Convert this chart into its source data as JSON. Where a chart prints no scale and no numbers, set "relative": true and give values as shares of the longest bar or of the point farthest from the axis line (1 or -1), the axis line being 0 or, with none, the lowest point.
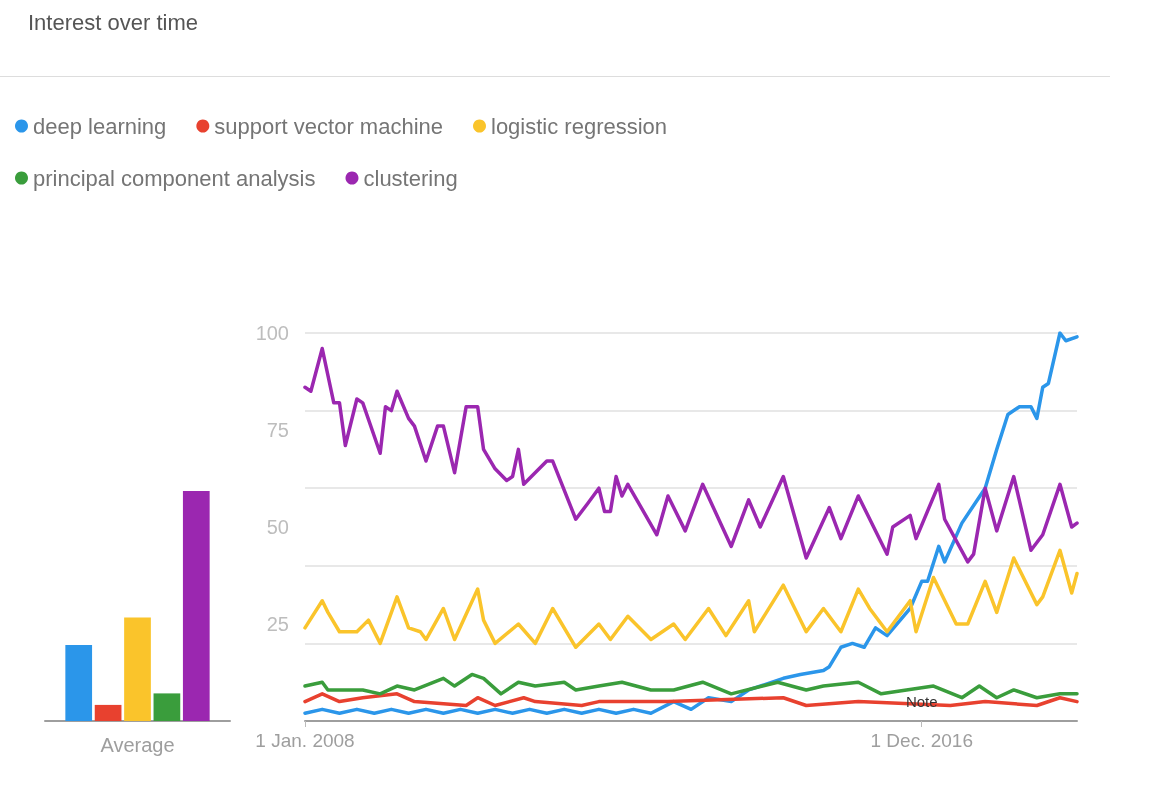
{
  "chart_data": [
    {
      "type": "bar",
      "categories": [
        "Average"
      ],
      "relative": true,
      "series": [
        {
          "color": "#2b96ea",
          "values": [
            0.33
          ]
        },
        {
          "color": "#e8412f",
          "values": [
            0.07
          ]
        },
        {
          "color": "#fac42b",
          "values": [
            0.45
          ]
        },
        {
          "color": "#3a9d3c",
          "values": [
            0.12
          ]
        },
        {
          "color": "#9b27b0",
          "values": [
            1
          ]
        }
      ]
    },
    {
      "type": "line",
      "title": "Interest over time",
      "legend": "top",
      "grid": "y",
      "marker": "none",
      "line_style": "solid",
      "xlim": [
        "2008-01",
        "2019-03"
      ],
      "xticks": [
        {
          "value": "2008-01",
          "label": "1 Jan. 2008"
        },
        {
          "value": "2016-12",
          "label": "1 Dec. 2016"
        }
      ],
      "ylim": [
        0,
        100
      ],
      "yticks": [
        25,
        50,
        75,
        100
      ],
      "annotations": [
        {
          "text": "Note",
          "x": "2016-12",
          "y": 5
        }
      ],
      "series": [
        {
          "name": "deep learning",
          "color": "#2b96ea",
          "x": [
            "2008-01",
            "2008-04",
            "2008-07",
            "2008-10",
            "2009-01",
            "2009-04",
            "2009-07",
            "2009-10",
            "2010-01",
            "2010-04",
            "2010-07",
            "2010-10",
            "2011-01",
            "2011-04",
            "2011-07",
            "2011-10",
            "2012-01",
            "2012-04",
            "2012-07",
            "2012-10",
            "2013-01",
            "2013-05",
            "2013-08",
            "2013-11",
            "2014-03",
            "2014-06",
            "2014-12",
            "2015-03",
            "2015-07",
            "2015-08",
            "2015-10",
            "2015-12",
            "2016-02",
            "2016-04",
            "2016-06",
            "2016-10",
            "2016-12",
            "2017-01",
            "2017-03",
            "2017-04",
            "2017-07",
            "2017-11",
            "2018-01",
            "2018-03",
            "2018-05",
            "2018-07",
            "2018-08",
            "2018-09",
            "2018-10",
            "2018-12",
            "2019-01",
            "2019-03"
          ],
          "values": [
            2,
            3,
            2,
            3,
            2,
            3,
            2,
            3,
            2,
            3,
            2,
            3,
            2,
            3,
            2,
            3,
            2,
            3,
            2,
            3,
            2,
            5,
            3,
            6,
            5,
            8,
            11,
            12,
            13,
            14,
            19,
            20,
            19,
            24,
            22,
            29,
            36,
            36,
            45,
            41,
            51,
            60,
            70,
            79,
            81,
            81,
            78,
            86,
            87,
            100,
            98,
            99
          ]
        },
        {
          "name": "support vector machine",
          "color": "#e8412f",
          "x": [
            "2008-01",
            "2008-04",
            "2008-07",
            "2008-11",
            "2009-05",
            "2009-08",
            "2010-05",
            "2010-07",
            "2010-10",
            "2011-03",
            "2011-05",
            "2012-01",
            "2012-04",
            "2013-04",
            "2014-12",
            "2015-04",
            "2016-01",
            "2017-05",
            "2017-11",
            "2018-08",
            "2018-12",
            "2019-03"
          ],
          "values": [
            5,
            7,
            5,
            6,
            7,
            5,
            4,
            6,
            4,
            6,
            5,
            4,
            5,
            5,
            6,
            4,
            5,
            4,
            5,
            4,
            6,
            5
          ]
        },
        {
          "name": "logistic regression",
          "color": "#fac42b",
          "x": [
            "2008-01",
            "2008-04",
            "2008-05",
            "2008-07",
            "2008-10",
            "2008-12",
            "2009-02",
            "2009-05",
            "2009-07",
            "2009-09",
            "2009-10",
            "2010-01",
            "2010-03",
            "2010-07",
            "2010-08",
            "2010-10",
            "2011-02",
            "2011-05",
            "2011-08",
            "2011-12",
            "2012-04",
            "2012-06",
            "2012-09",
            "2013-01",
            "2013-05",
            "2013-07",
            "2013-11",
            "2014-02",
            "2014-06",
            "2014-07",
            "2014-12",
            "2015-04",
            "2015-07",
            "2015-10",
            "2016-01",
            "2016-03",
            "2016-06",
            "2016-10",
            "2016-11",
            "2017-02",
            "2017-06",
            "2017-08",
            "2017-11",
            "2018-01",
            "2018-04",
            "2018-08",
            "2018-09",
            "2018-12",
            "2019-02",
            "2019-03"
          ],
          "values": [
            24,
            31,
            28,
            23,
            23,
            26,
            20,
            32,
            24,
            23,
            21,
            29,
            21,
            34,
            26,
            20,
            25,
            20,
            29,
            19,
            25,
            21,
            27,
            21,
            25,
            21,
            29,
            22,
            31,
            23,
            35,
            23,
            29,
            23,
            34,
            29,
            23,
            31,
            23,
            37,
            25,
            25,
            36,
            28,
            42,
            30,
            32,
            44,
            33,
            38
          ]
        },
        {
          "name": "principal component analysis",
          "color": "#3a9d3c",
          "x": [
            "2008-01",
            "2008-04",
            "2008-05",
            "2008-11",
            "2009-02",
            "2009-05",
            "2009-08",
            "2010-01",
            "2010-03",
            "2010-06",
            "2010-08",
            "2010-11",
            "2011-02",
            "2011-05",
            "2011-10",
            "2011-12",
            "2012-04",
            "2012-08",
            "2013-01",
            "2013-05",
            "2013-10",
            "2014-03",
            "2014-11",
            "2015-04",
            "2015-07",
            "2016-01",
            "2016-05",
            "2017-02",
            "2017-07",
            "2017-10",
            "2018-01",
            "2018-04",
            "2018-08",
            "2018-12",
            "2019-03"
          ],
          "values": [
            9,
            10,
            8,
            8,
            7,
            9,
            8,
            11,
            9,
            12,
            11,
            7,
            10,
            9,
            10,
            8,
            9,
            10,
            8,
            8,
            10,
            7,
            10,
            8,
            9,
            10,
            7,
            9,
            6,
            9,
            6,
            8,
            6,
            7,
            7
          ]
        },
        {
          "name": "clustering",
          "color": "#9b27b0",
          "x": [
            "2008-01",
            "2008-02",
            "2008-04",
            "2008-06",
            "2008-07",
            "2008-08",
            "2008-10",
            "2008-11",
            "2009-02",
            "2009-03",
            "2009-04",
            "2009-05",
            "2009-07",
            "2009-08",
            "2009-10",
            "2009-12",
            "2010-01",
            "2010-03",
            "2010-05",
            "2010-07",
            "2010-08",
            "2010-10",
            "2010-12",
            "2011-01",
            "2011-02",
            "2011-03",
            "2011-07",
            "2011-08",
            "2011-12",
            "2012-02",
            "2012-04",
            "2012-05",
            "2012-06",
            "2012-07",
            "2012-08",
            "2012-09",
            "2013-02",
            "2013-04",
            "2013-07",
            "2013-10",
            "2014-03",
            "2014-06",
            "2014-08",
            "2014-12",
            "2015-04",
            "2015-08",
            "2015-10",
            "2016-01",
            "2016-06",
            "2016-07",
            "2016-10",
            "2016-11",
            "2017-03",
            "2017-04",
            "2017-08",
            "2017-09",
            "2017-11",
            "2018-01",
            "2018-04",
            "2018-07",
            "2018-09",
            "2018-12",
            "2019-02",
            "2019-03"
          ],
          "values": [
            86,
            85,
            96,
            82,
            82,
            71,
            83,
            82,
            69,
            81,
            80,
            85,
            78,
            76,
            67,
            76,
            76,
            64,
            81,
            81,
            70,
            65,
            62,
            63,
            70,
            61,
            67,
            67,
            52,
            56,
            60,
            54,
            54,
            63,
            58,
            61,
            48,
            58,
            49,
            61,
            45,
            57,
            50,
            63,
            42,
            55,
            47,
            58,
            43,
            50,
            53,
            47,
            61,
            52,
            41,
            43,
            60,
            49,
            63,
            44,
            48,
            61,
            50,
            51
          ]
        }
      ]
    }
  ]
}
